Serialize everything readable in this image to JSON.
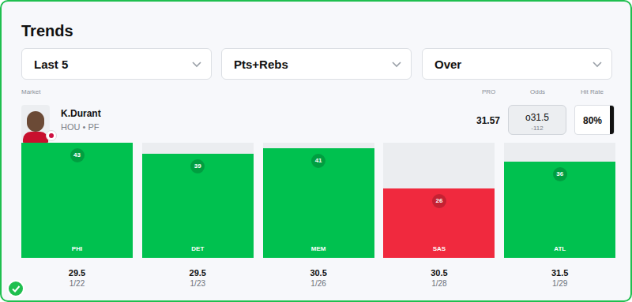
{
  "header": {
    "title": "Trends",
    "filters": [
      "Last 5",
      "Pts+Rebs",
      "Over"
    ]
  },
  "columns": {
    "market": "Market",
    "pro": "PRO",
    "odds": "Odds",
    "hit_rate": "Hit Rate"
  },
  "player": {
    "name": "K.Durant",
    "info": "HOU • PF",
    "pro": "31.57",
    "odds_line": "o31.5",
    "odds_price": "-112",
    "hit_rate": "80%"
  },
  "chart_data": {
    "type": "bar",
    "categories": [
      "PHI",
      "DET",
      "MEM",
      "SAS",
      "ATL"
    ],
    "values": [
      43,
      39,
      41,
      26,
      36
    ],
    "colors": [
      "#00c14f",
      "#00c14f",
      "#00c14f",
      "#f0293e",
      "#00c14f"
    ],
    "lines": [
      29.5,
      29.5,
      30.5,
      30.5,
      31.5
    ],
    "dates": [
      "1/22",
      "1/23",
      "1/26",
      "1/28",
      "1/29"
    ],
    "ylim": [
      0,
      43
    ],
    "data_labels": true,
    "tick_labels": "x"
  }
}
